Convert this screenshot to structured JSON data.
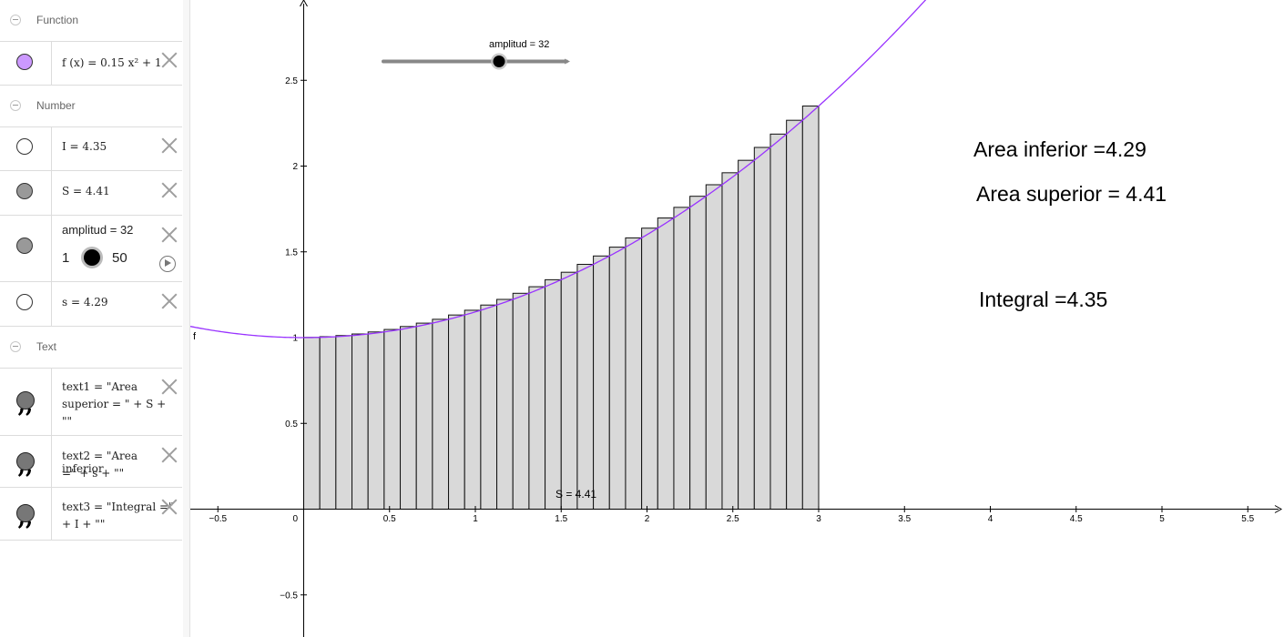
{
  "algebra": {
    "categories": {
      "function": "Function",
      "number": "Number",
      "text": "Text"
    },
    "f_def": "f (x)  =  0.15 x² + 1",
    "I_def": "I  =  4.35",
    "S_def": "S  =  4.41",
    "amplitud_def": "amplitud = 32",
    "slider_min": "1",
    "slider_max": "50",
    "s_def": "s  =  4.29",
    "text1_line1": "text1  =  \"Area",
    "text1_line2": "superior = \" + S +",
    "text1_line3": "\"\"",
    "text2_line1": "text2  =  \"Area inferior",
    "text2_line2": "=\" + s + \"\"",
    "text3_line1": "text3  =  \"Integral =\"",
    "text3_line2": "+ I + \"\"",
    "colors": {
      "f": "#cc99ff",
      "S": "#999999",
      "text": "#777777"
    }
  },
  "graphics": {
    "slider_label": "amplitud = 32",
    "text_inferior": "Area inferior =4.29",
    "text_superior": "Area superior = 4.41",
    "text_integral": "Integral =4.35",
    "S_label": "S = 4.41",
    "f_label": "f",
    "curve_color": "#9933ff",
    "x_ticks": [
      "−0.5",
      "0",
      "0.5",
      "1",
      "1.5",
      "2",
      "2.5",
      "3",
      "3.5",
      "4",
      "4.5",
      "5",
      "5.5"
    ],
    "y_ticks": [
      "−0.5",
      "0.5",
      "1",
      "1.5",
      "2",
      "2.5"
    ]
  },
  "chart_data": {
    "type": "line",
    "function": "f(x) = 0.15 x^2 + 1",
    "riemann": {
      "a": 0,
      "b": 3,
      "n": 32,
      "kind": "upper",
      "sum": 4.41
    },
    "lower_sum": 4.29,
    "integral": 4.35,
    "xlim": [
      -0.667,
      5.734
    ],
    "ylim": [
      -0.733,
      2.933
    ],
    "grid": false
  }
}
